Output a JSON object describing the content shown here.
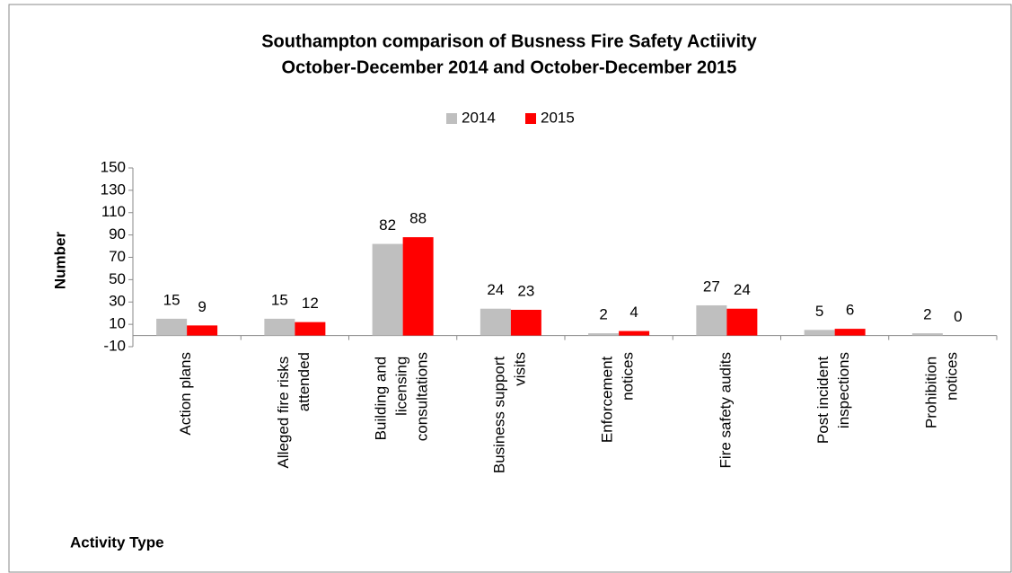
{
  "chart_data": {
    "type": "bar",
    "title": [
      "Southampton comparison of Busness Fire Safety Actiivity",
      "October-December 2014 and October-December 2015"
    ],
    "y_label": "Number",
    "x_label": "Activity Type",
    "categories": [
      "Action plans",
      "Alleged fire risks attended",
      "Building and licensing consultations",
      "Business support visits",
      "Enforcement notices",
      "Fire safety audits",
      "Post incident inspections",
      "Prohibition notices"
    ],
    "series": [
      {
        "name": "2014",
        "color": "#bfbfbf",
        "values": [
          15,
          15,
          82,
          24,
          2,
          27,
          5,
          2
        ]
      },
      {
        "name": "2015",
        "color": "#ff0000",
        "values": [
          9,
          12,
          88,
          23,
          4,
          24,
          6,
          0
        ]
      }
    ],
    "ylim": [
      -10,
      150
    ],
    "yticks": [
      -10,
      10,
      30,
      50,
      70,
      90,
      110,
      130,
      150
    ],
    "legend": "top"
  }
}
